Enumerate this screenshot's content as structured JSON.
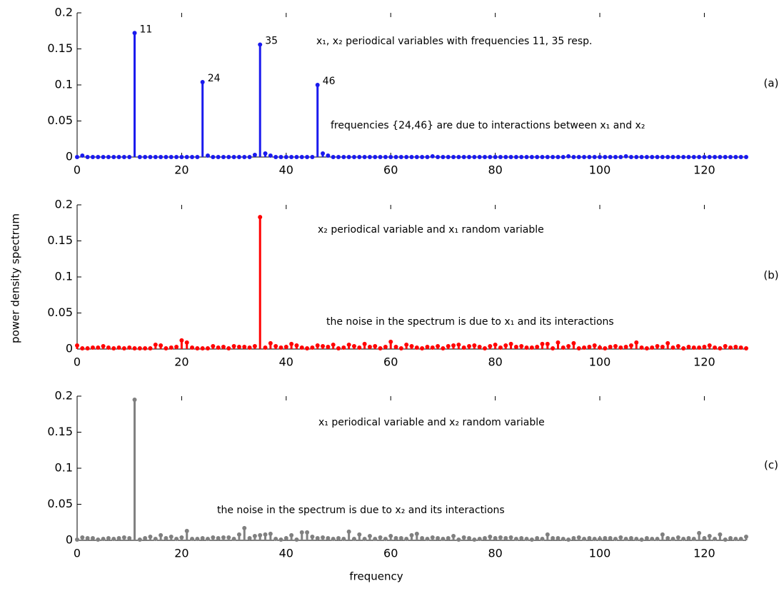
{
  "figure": {
    "ylabel": "power density spectrum",
    "xlabel": "frequency"
  },
  "chart_data": [
    {
      "type": "stem",
      "panel_label": "(a)",
      "color": "#1a1aee",
      "x": [
        0,
        1,
        2,
        3,
        4,
        5,
        6,
        7,
        8,
        9,
        10,
        11,
        12,
        13,
        14,
        15,
        16,
        17,
        18,
        19,
        20,
        21,
        22,
        23,
        24,
        25,
        26,
        27,
        28,
        29,
        30,
        31,
        32,
        33,
        34,
        35,
        36,
        37,
        38,
        39,
        40,
        41,
        42,
        43,
        44,
        45,
        46,
        47,
        48,
        49,
        50,
        51,
        52,
        53,
        54,
        55,
        56,
        57,
        58,
        59,
        60,
        61,
        62,
        63,
        64,
        65,
        66,
        67,
        68,
        69,
        70,
        71,
        72,
        73,
        74,
        75,
        76,
        77,
        78,
        79,
        80,
        81,
        82,
        83,
        84,
        85,
        86,
        87,
        88,
        89,
        90,
        91,
        92,
        93,
        94,
        95,
        96,
        97,
        98,
        99,
        100,
        101,
        102,
        103,
        104,
        105,
        106,
        107,
        108,
        109,
        110,
        111,
        112,
        113,
        114,
        115,
        116,
        117,
        118,
        119,
        120,
        121,
        122,
        123,
        124,
        125,
        126,
        127,
        128
      ],
      "values": [
        0,
        0.002,
        0,
        0,
        0,
        0,
        0,
        0,
        0,
        0,
        0,
        0.172,
        0,
        0,
        0,
        0,
        0,
        0,
        0,
        0,
        0,
        0,
        0,
        0,
        0.104,
        0.002,
        0,
        0,
        0,
        0,
        0,
        0,
        0,
        0,
        0.003,
        0.156,
        0.005,
        0.002,
        0,
        0,
        0,
        0,
        0,
        0,
        0,
        0,
        0.1,
        0.005,
        0.002,
        0,
        0,
        0,
        0,
        0,
        0,
        0,
        0,
        0,
        0,
        0,
        0,
        0,
        0,
        0,
        0,
        0,
        0,
        0,
        0.001,
        0,
        0,
        0,
        0,
        0,
        0,
        0,
        0,
        0,
        0,
        0,
        0,
        0,
        0,
        0,
        0,
        0,
        0,
        0,
        0,
        0,
        0,
        0,
        0,
        0,
        0.001,
        0,
        0,
        0,
        0,
        0,
        0,
        0,
        0,
        0,
        0,
        0.001,
        0,
        0,
        0,
        0,
        0,
        0,
        0,
        0,
        0,
        0,
        0,
        0,
        0,
        0,
        0,
        0,
        0,
        0,
        0,
        0,
        0,
        0,
        0
      ],
      "peaks": [
        11,
        24,
        35,
        46
      ],
      "annotations": [
        "x₁, x₂ periodical variables with frequencies 11, 35 resp.",
        "frequencies {24,46} are due to interactions between x₁ and x₂"
      ],
      "xlim": [
        0,
        128
      ],
      "xticks": [
        0,
        20,
        40,
        60,
        80,
        100,
        120
      ],
      "ylim": [
        0,
        0.2
      ],
      "yticks": [
        0,
        0.05,
        0.1,
        0.15,
        0.2
      ]
    },
    {
      "type": "stem",
      "panel_label": "(b)",
      "color": "#ff0000",
      "x": [
        0,
        1,
        2,
        3,
        4,
        5,
        6,
        7,
        8,
        9,
        10,
        11,
        12,
        13,
        14,
        15,
        16,
        17,
        18,
        19,
        20,
        21,
        22,
        23,
        24,
        25,
        26,
        27,
        28,
        29,
        30,
        31,
        32,
        33,
        34,
        35,
        36,
        37,
        38,
        39,
        40,
        41,
        42,
        43,
        44,
        45,
        46,
        47,
        48,
        49,
        50,
        51,
        52,
        53,
        54,
        55,
        56,
        57,
        58,
        59,
        60,
        61,
        62,
        63,
        64,
        65,
        66,
        67,
        68,
        69,
        70,
        71,
        72,
        73,
        74,
        75,
        76,
        77,
        78,
        79,
        80,
        81,
        82,
        83,
        84,
        85,
        86,
        87,
        88,
        89,
        90,
        91,
        92,
        93,
        94,
        95,
        96,
        97,
        98,
        99,
        100,
        101,
        102,
        103,
        104,
        105,
        106,
        107,
        108,
        109,
        110,
        111,
        112,
        113,
        114,
        115,
        116,
        117,
        118,
        119,
        120,
        121,
        122,
        123,
        124,
        125,
        126,
        127,
        128
      ],
      "values": [
        0.005,
        0.001,
        0.001,
        0.002,
        0.002,
        0.004,
        0.002,
        0.001,
        0.002,
        0.001,
        0.002,
        0.001,
        0.001,
        0.001,
        0.001,
        0.006,
        0.005,
        0.001,
        0.002,
        0.003,
        0.012,
        0.009,
        0.002,
        0.001,
        0.001,
        0.001,
        0.004,
        0.002,
        0.003,
        0.001,
        0.004,
        0.003,
        0.003,
        0.002,
        0.004,
        0.183,
        0.002,
        0.008,
        0.004,
        0.002,
        0.003,
        0.007,
        0.005,
        0.002,
        0.001,
        0.002,
        0.005,
        0.004,
        0.003,
        0.006,
        0.001,
        0.002,
        0.006,
        0.004,
        0.002,
        0.007,
        0.003,
        0.004,
        0.001,
        0.003,
        0.01,
        0.003,
        0.001,
        0.006,
        0.004,
        0.002,
        0.001,
        0.003,
        0.002,
        0.004,
        0.001,
        0.004,
        0.005,
        0.006,
        0.002,
        0.004,
        0.005,
        0.003,
        0.001,
        0.004,
        0.006,
        0.002,
        0.005,
        0.007,
        0.003,
        0.004,
        0.002,
        0.002,
        0.003,
        0.007,
        0.007,
        0.001,
        0.009,
        0.002,
        0.004,
        0.008,
        0.001,
        0.002,
        0.003,
        0.005,
        0.002,
        0.001,
        0.003,
        0.004,
        0.002,
        0.003,
        0.005,
        0.009,
        0.002,
        0.001,
        0.002,
        0.004,
        0.003,
        0.008,
        0.002,
        0.004,
        0.001,
        0.003,
        0.002,
        0.002,
        0.003,
        0.005,
        0.002,
        0.001,
        0.004,
        0.002,
        0.003,
        0.002,
        0.001
      ],
      "annotations": [
        "x₂ periodical variable and x₁ random variable",
        "the noise in the spectrum is due to x₁ and its interactions"
      ],
      "xlim": [
        0,
        128
      ],
      "xticks": [
        0,
        20,
        40,
        60,
        80,
        100,
        120
      ],
      "ylim": [
        0,
        0.2
      ],
      "yticks": [
        0,
        0.05,
        0.1,
        0.15,
        0.2
      ]
    },
    {
      "type": "stem",
      "panel_label": "(c)",
      "color": "#808080",
      "x": [
        0,
        1,
        2,
        3,
        4,
        5,
        6,
        7,
        8,
        9,
        10,
        11,
        12,
        13,
        14,
        15,
        16,
        17,
        18,
        19,
        20,
        21,
        22,
        23,
        24,
        25,
        26,
        27,
        28,
        29,
        30,
        31,
        32,
        33,
        34,
        35,
        36,
        37,
        38,
        39,
        40,
        41,
        42,
        43,
        44,
        45,
        46,
        47,
        48,
        49,
        50,
        51,
        52,
        53,
        54,
        55,
        56,
        57,
        58,
        59,
        60,
        61,
        62,
        63,
        64,
        65,
        66,
        67,
        68,
        69,
        70,
        71,
        72,
        73,
        74,
        75,
        76,
        77,
        78,
        79,
        80,
        81,
        82,
        83,
        84,
        85,
        86,
        87,
        88,
        89,
        90,
        91,
        92,
        93,
        94,
        95,
        96,
        97,
        98,
        99,
        100,
        101,
        102,
        103,
        104,
        105,
        106,
        107,
        108,
        109,
        110,
        111,
        112,
        113,
        114,
        115,
        116,
        117,
        118,
        119,
        120,
        121,
        122,
        123,
        124,
        125,
        126,
        127,
        128
      ],
      "values": [
        0.001,
        0.004,
        0.003,
        0.003,
        0.001,
        0.002,
        0.003,
        0.002,
        0.003,
        0.004,
        0.003,
        0.195,
        0.001,
        0.003,
        0.005,
        0.002,
        0.007,
        0.003,
        0.005,
        0.002,
        0.004,
        0.013,
        0.002,
        0.002,
        0.003,
        0.002,
        0.004,
        0.003,
        0.004,
        0.004,
        0.002,
        0.008,
        0.017,
        0.003,
        0.006,
        0.007,
        0.008,
        0.009,
        0.002,
        0.001,
        0.003,
        0.007,
        0.001,
        0.011,
        0.011,
        0.005,
        0.003,
        0.004,
        0.003,
        0.002,
        0.003,
        0.002,
        0.012,
        0.002,
        0.008,
        0.002,
        0.006,
        0.002,
        0.004,
        0.002,
        0.006,
        0.003,
        0.003,
        0.002,
        0.007,
        0.009,
        0.003,
        0.002,
        0.004,
        0.003,
        0.002,
        0.003,
        0.006,
        0.001,
        0.004,
        0.003,
        0.001,
        0.002,
        0.003,
        0.005,
        0.003,
        0.004,
        0.003,
        0.004,
        0.002,
        0.003,
        0.002,
        0.001,
        0.003,
        0.002,
        0.008,
        0.003,
        0.003,
        0.002,
        0.001,
        0.003,
        0.004,
        0.002,
        0.003,
        0.002,
        0.002,
        0.003,
        0.003,
        0.002,
        0.004,
        0.002,
        0.003,
        0.002,
        0.001,
        0.003,
        0.002,
        0.002,
        0.008,
        0.003,
        0.002,
        0.004,
        0.002,
        0.003,
        0.002,
        0.01,
        0.003,
        0.006,
        0.002,
        0.008,
        0.001,
        0.003,
        0.002,
        0.002,
        0.005
      ],
      "annotations": [
        "x₁ periodical variable and x₂ random variable",
        "the noise in the spectrum is due to x₂ and its interactions"
      ],
      "xlim": [
        0,
        128
      ],
      "xticks": [
        0,
        20,
        40,
        60,
        80,
        100,
        120
      ],
      "ylim": [
        0,
        0.2
      ],
      "yticks": [
        0,
        0.05,
        0.1,
        0.15,
        0.2
      ]
    }
  ]
}
